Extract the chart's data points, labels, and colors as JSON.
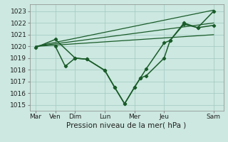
{
  "background_color": "#cce8e0",
  "grid_color": "#a0c8c0",
  "line_color": "#1a5c2a",
  "xlabel": "Pression niveau de la mer( hPa )",
  "xlabels": [
    "Mar",
    "Ven",
    "Dim",
    "Lun",
    "Mer",
    "Jeu",
    "Sam"
  ],
  "xtick_positions": [
    0,
    1,
    2,
    3.5,
    5,
    6.5,
    9
  ],
  "ylim": [
    1014.5,
    1023.6
  ],
  "yticks": [
    1015,
    1016,
    1017,
    1018,
    1019,
    1020,
    1021,
    1022,
    1023
  ],
  "lines": [
    {
      "x": [
        0,
        9
      ],
      "y": [
        1020.0,
        1023.1
      ],
      "marker": null,
      "linewidth": 0.9
    },
    {
      "x": [
        0,
        9
      ],
      "y": [
        1020.0,
        1022.0
      ],
      "marker": null,
      "linewidth": 0.9
    },
    {
      "x": [
        0,
        9
      ],
      "y": [
        1020.0,
        1021.0
      ],
      "marker": null,
      "linewidth": 0.9
    },
    {
      "x": [
        0,
        1,
        2,
        2.6,
        3.5,
        4.0,
        4.5,
        5.0,
        5.3,
        5.6,
        6.5,
        6.8,
        7.5,
        8.2,
        9.0
      ],
      "y": [
        1019.9,
        1020.6,
        1019.0,
        1018.9,
        1017.95,
        1016.5,
        1015.1,
        1016.5,
        1017.3,
        1017.5,
        1019.0,
        1020.5,
        1021.9,
        1021.6,
        1021.8
      ],
      "marker": "D",
      "markersize": 2.2,
      "linewidth": 1.1
    },
    {
      "x": [
        1,
        1.5,
        2,
        2.6,
        3.5,
        4.0,
        4.5,
        5.0,
        5.3,
        5.6,
        6.5,
        6.8,
        7.5,
        8.2,
        9.0
      ],
      "y": [
        1020.0,
        1018.3,
        1019.0,
        1018.9,
        1017.95,
        1016.5,
        1015.1,
        1016.5,
        1017.3,
        1018.1,
        1020.3,
        1020.5,
        1022.0,
        1021.6,
        1023.0
      ],
      "marker": "D",
      "markersize": 2.2,
      "linewidth": 1.1
    }
  ]
}
